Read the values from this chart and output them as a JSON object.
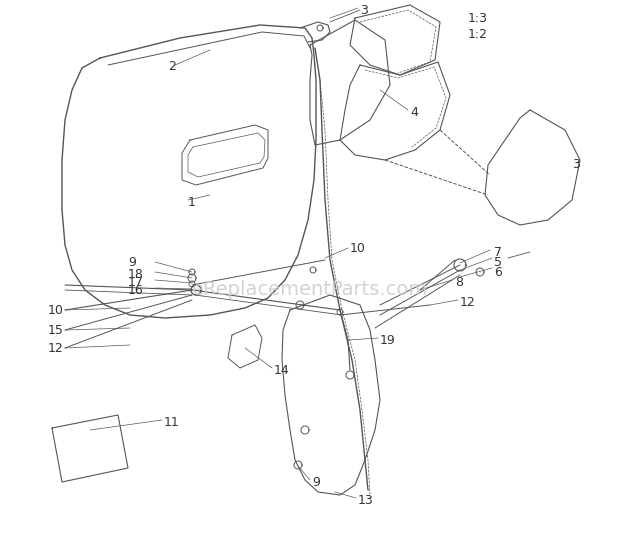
{
  "bg_color": "#ffffff",
  "line_color": "#555555",
  "watermark_text": "eReplacementParts.com",
  "watermark_color": "#cccccc",
  "watermark_fontsize": 14,
  "label_fontsize": 9,
  "figsize": [
    6.2,
    5.36
  ],
  "dpi": 100
}
